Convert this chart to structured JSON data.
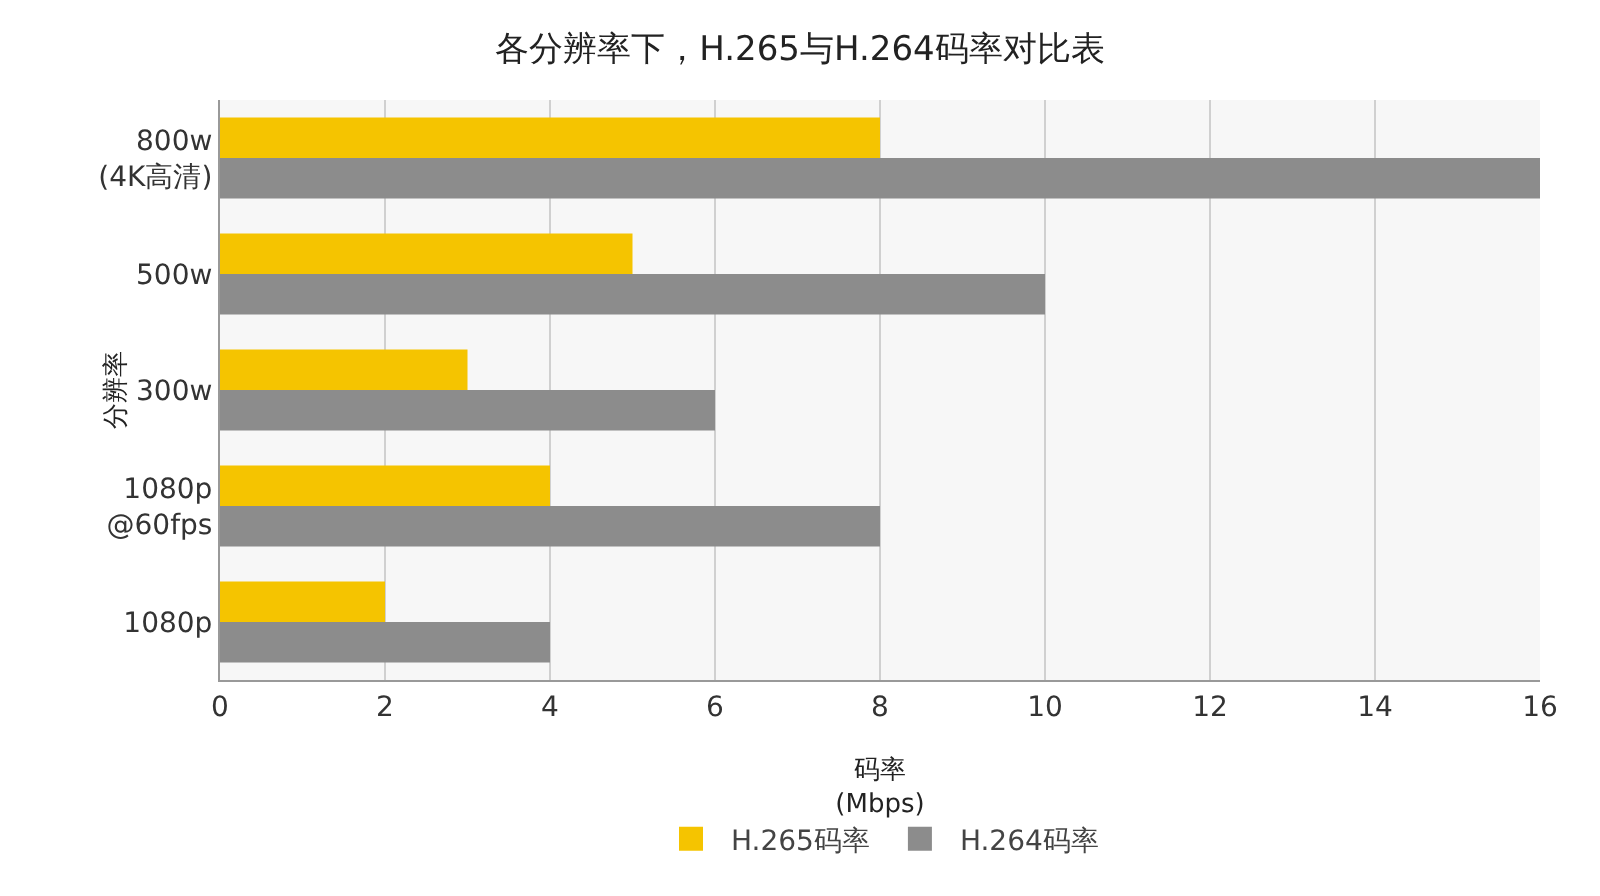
{
  "chart_data": {
    "type": "bar",
    "orientation": "horizontal",
    "title": "各分辨率下，H.265与H.264码率对比表",
    "categories": [
      "800w\n(4K高清)",
      "500w",
      "300w",
      "1080p\n@60fps",
      "1080p"
    ],
    "series": [
      {
        "name": "H.265码率",
        "color": "#f5c400",
        "values": [
          8,
          5,
          3,
          4,
          2
        ]
      },
      {
        "name": "H.264码率",
        "color": "#8c8c8c",
        "values": [
          16,
          10,
          6,
          8,
          4
        ]
      }
    ],
    "xlabel": "码率\n(Mbps)",
    "ylabel": "分辨率",
    "xlim": [
      0,
      16
    ],
    "xticks": [
      0,
      2,
      4,
      6,
      8,
      10,
      12,
      14,
      16
    ],
    "grid": "x",
    "legend": "bottom"
  }
}
